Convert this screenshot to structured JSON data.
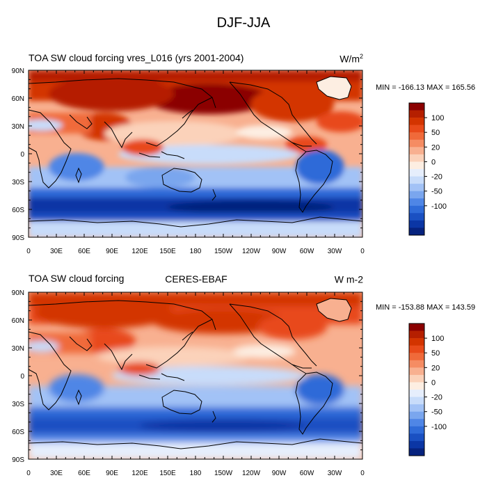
{
  "figure": {
    "title": "DJF-JJA"
  },
  "panels": [
    {
      "title_left": "TOA SW cloud forcing vres_L016 (yrs 2001-2004)",
      "title_center": "",
      "units_base": "W/m",
      "units_sup": "2",
      "min_max": "MIN = -166.13 MAX = 165.56"
    },
    {
      "title_left": "TOA SW cloud forcing",
      "title_center": "CERES-EBAF",
      "units_base": "W m-2",
      "units_sup": "",
      "min_max": "MIN = -153.88 MAX = 143.59"
    }
  ],
  "map": {
    "projection": "cylindrical-equidistant",
    "lon_range": [
      0,
      360
    ],
    "lat_range": [
      -90,
      90
    ],
    "lon_tick_labels": [
      "0",
      "30E",
      "60E",
      "90E",
      "120E",
      "150E",
      "180",
      "150W",
      "120W",
      "90W",
      "60W",
      "30W",
      "0"
    ],
    "lat_tick_labels": [
      "90N",
      "60N",
      "30N",
      "0",
      "30S",
      "60S",
      "90S"
    ],
    "coastlines": true
  },
  "colorbar": {
    "labels": [
      "100",
      "50",
      "20",
      "0",
      "-20",
      "-50",
      "-100"
    ],
    "colors": [
      "#8b0000",
      "#b51f00",
      "#d33400",
      "#e84a1a",
      "#f06a3a",
      "#f58c63",
      "#f8b090",
      "#fbd2ba",
      "#fdeee2",
      "#e6eefc",
      "#c8dcfa",
      "#a2c2f6",
      "#7aa6ee",
      "#4f86e6",
      "#2f6bd8",
      "#1a50c2",
      "#0b36a5",
      "#06227e"
    ]
  }
}
